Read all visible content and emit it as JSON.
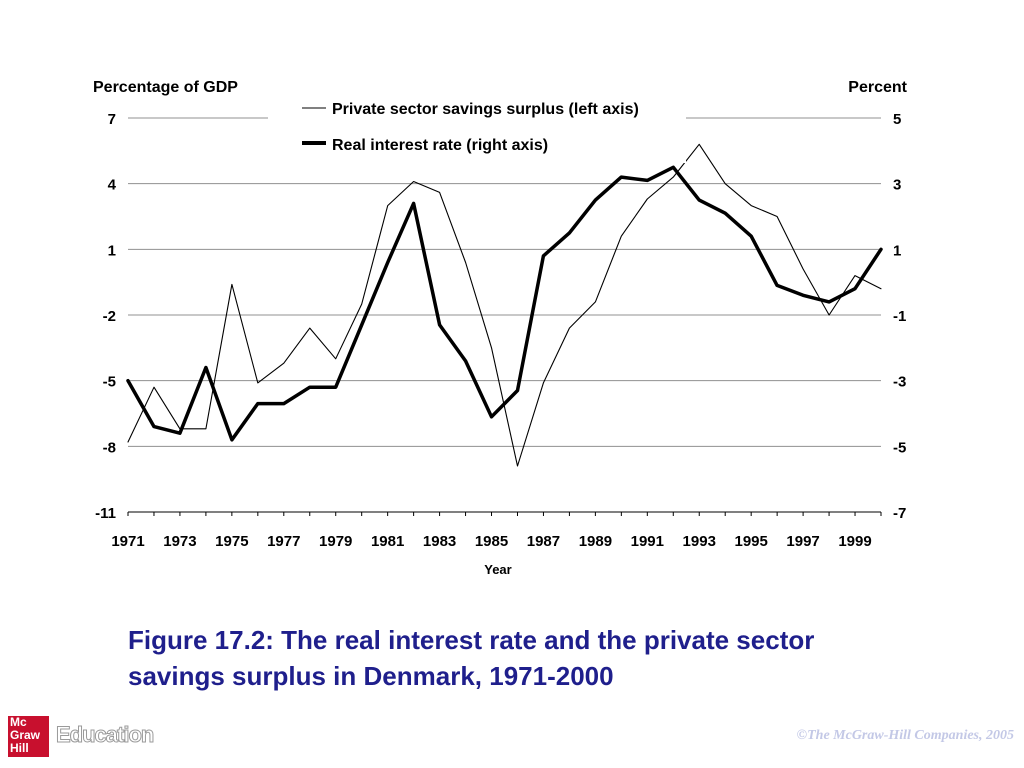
{
  "chart_data": {
    "type": "line",
    "left_axis_label": "Percentage of GDP",
    "right_axis_label": "Percent",
    "xlabel": "Year",
    "left_ticks": [
      "7",
      "4",
      "1",
      "-2",
      "-5",
      "-8",
      "-11"
    ],
    "left_ylim": [
      -11,
      7
    ],
    "right_ticks": [
      "5",
      "3",
      "1",
      "-1",
      "-3",
      "-5",
      "-7"
    ],
    "right_ylim": [
      -7,
      5
    ],
    "x_ticks": [
      "1971",
      "1973",
      "1975",
      "1977",
      "1979",
      "1981",
      "1983",
      "1985",
      "1987",
      "1989",
      "1991",
      "1993",
      "1995",
      "1997",
      "1999"
    ],
    "grid": "horizontal",
    "legend": "top-center",
    "x": [
      1971,
      1972,
      1973,
      1974,
      1975,
      1976,
      1977,
      1978,
      1979,
      1980,
      1981,
      1982,
      1983,
      1984,
      1985,
      1986,
      1987,
      1988,
      1989,
      1990,
      1991,
      1992,
      1993,
      1994,
      1995,
      1996,
      1997,
      1998,
      1999,
      2000
    ],
    "series": [
      {
        "name": "Private sector savings surplus (left axis)",
        "axis": "left",
        "line": "thin",
        "values": [
          -7.8,
          -5.3,
          -7.2,
          -7.2,
          -0.6,
          -5.1,
          -4.2,
          -2.6,
          -4.0,
          -1.5,
          3.0,
          4.1,
          3.6,
          0.4,
          -3.5,
          -8.9,
          -5.1,
          -2.6,
          -1.4,
          1.6,
          3.3,
          4.3,
          5.8,
          4.0,
          3.0,
          2.5,
          0.1,
          -2.0,
          -0.2,
          -0.8
        ]
      },
      {
        "name": "Real interest rate (right axis)",
        "axis": "right",
        "line": "thick",
        "values": [
          -3.0,
          -4.4,
          -4.6,
          -2.6,
          -4.8,
          -3.7,
          -3.7,
          -3.2,
          -3.2,
          -1.3,
          0.6,
          2.4,
          -1.3,
          -2.4,
          -4.1,
          -3.3,
          0.8,
          1.5,
          2.5,
          3.2,
          3.1,
          3.5,
          2.5,
          2.1,
          1.4,
          -0.1,
          -0.4,
          -0.6,
          -0.2,
          1.0
        ]
      }
    ]
  },
  "caption": "Figure 17.2: The real interest rate and the private sector savings surplus in Denmark, 1971-2000",
  "footer": {
    "logo_lines": [
      "Mc",
      "Graw",
      "Hill"
    ],
    "logo_text": "Education",
    "copyright": "©The McGraw-Hill Companies, 2005"
  },
  "colors": {
    "caption": "#1f1f8c",
    "logo_red": "#c8102e",
    "copyright": "#c3c8e6",
    "grid": "#909090"
  }
}
